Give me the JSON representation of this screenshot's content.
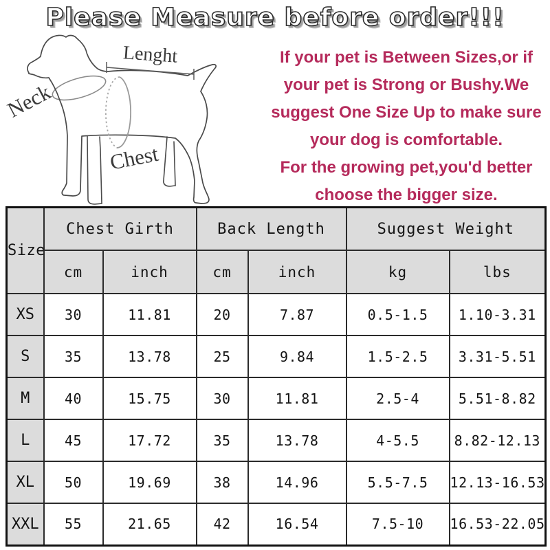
{
  "title": {
    "text": "Please Measure before order!!!"
  },
  "diagram": {
    "labels": {
      "neck": "Neck",
      "length": "Lenght",
      "chest": "Chest"
    }
  },
  "advice": {
    "color": "#b52a5b",
    "text": "If your pet is Between Sizes,or if\nyour pet is Strong or Bushy.We\nsuggest One Size Up to make sure\nyour dog is comfortable.\nFor the growing pet,you'd better\nchoose the bigger size."
  },
  "table": {
    "header_bg": "#dcdcdc",
    "border_color": "#2b2b2b",
    "corner_label": "Size",
    "groups": [
      {
        "label": "Chest Girth",
        "units": [
          "cm",
          "inch"
        ]
      },
      {
        "label": "Back Length",
        "units": [
          "cm",
          "inch"
        ]
      },
      {
        "label": "Suggest Weight",
        "units": [
          "kg",
          "lbs"
        ]
      }
    ],
    "rows": [
      {
        "size": "XS",
        "values": [
          "30",
          "11.81",
          "20",
          "7.87",
          "0.5-1.5",
          "1.10-3.31"
        ]
      },
      {
        "size": "S",
        "values": [
          "35",
          "13.78",
          "25",
          "9.84",
          "1.5-2.5",
          "3.31-5.51"
        ]
      },
      {
        "size": "M",
        "values": [
          "40",
          "15.75",
          "30",
          "11.81",
          "2.5-4",
          "5.51-8.82"
        ]
      },
      {
        "size": "L",
        "values": [
          "45",
          "17.72",
          "35",
          "13.78",
          "4-5.5",
          "8.82-12.13"
        ]
      },
      {
        "size": "XL",
        "values": [
          "50",
          "19.69",
          "38",
          "14.96",
          "5.5-7.5",
          "12.13-16.53"
        ]
      },
      {
        "size": "XXL",
        "values": [
          "55",
          "21.65",
          "42",
          "16.54",
          "7.5-10",
          "16.53-22.05"
        ]
      }
    ]
  }
}
